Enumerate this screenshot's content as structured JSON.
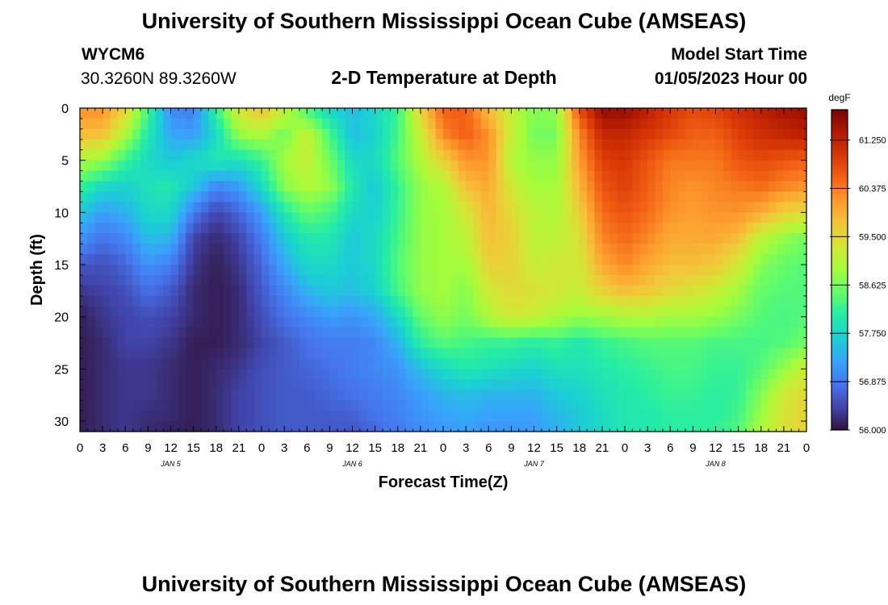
{
  "header": {
    "title": "University of Southern Mississippi Ocean Cube (AMSEAS)",
    "station": "WYCM6",
    "coords": "30.3260N  89.3260W",
    "plot_title": "2-D Temperature at Depth",
    "model_label": "Model Start Time",
    "model_time": "01/05/2023 Hour 00"
  },
  "footer": {
    "title": "University of Southern Mississippi Ocean Cube (AMSEAS)"
  },
  "chart_data": {
    "type": "heatmap",
    "title": "2-D Temperature at Depth",
    "xlabel": "Forecast Time(Z)",
    "ylabel": "Depth (ft)",
    "xlim": [
      0,
      96
    ],
    "ylim": [
      0,
      31
    ],
    "x_tick_labels": [
      "0",
      "3",
      "6",
      "9",
      "12",
      "15",
      "18",
      "21",
      "0",
      "3",
      "6",
      "9",
      "12",
      "15",
      "18",
      "21",
      "0",
      "3",
      "6",
      "9",
      "12",
      "15",
      "18",
      "21",
      "0",
      "3",
      "6",
      "9",
      "12",
      "15",
      "18",
      "21",
      "0"
    ],
    "date_labels": [
      {
        "label": "JAN 5",
        "hour": 12
      },
      {
        "label": "JAN 6",
        "hour": 36
      },
      {
        "label": "JAN 7",
        "hour": 60
      },
      {
        "label": "JAN 8",
        "hour": 84
      }
    ],
    "y_ticks": [
      0,
      5,
      10,
      15,
      20,
      25,
      30
    ],
    "colorbar": {
      "unit": "degF",
      "min": 56.0,
      "max": 61.8,
      "tick_values": [
        56.0,
        56.875,
        57.75,
        58.625,
        59.5,
        60.375,
        61.25
      ],
      "tick_labels": [
        "56.000",
        "56.875",
        "57.750",
        "58.625",
        "59.500",
        "60.375",
        "61.250"
      ],
      "colors": [
        "#30123b",
        "#4145ab",
        "#4675ed",
        "#39a2fc",
        "#1bcfd4",
        "#24eca6",
        "#61fc6c",
        "#a4fc3b",
        "#d1e834",
        "#f3c63a",
        "#fe9b2d",
        "#f36315",
        "#d93806",
        "#b11901",
        "#7a0403"
      ]
    },
    "depths": [
      0,
      2.5,
      5,
      7.5,
      10,
      12.5,
      15,
      17.5,
      20,
      22.5,
      25,
      27.5,
      30,
      31
    ],
    "hours": [
      0,
      3,
      6,
      9,
      12,
      15,
      18,
      21,
      24,
      27,
      30,
      33,
      36,
      39,
      42,
      45,
      48,
      51,
      54,
      57,
      60,
      63,
      66,
      69,
      72,
      75,
      78,
      81,
      84,
      87,
      90,
      93,
      96
    ],
    "temperature_degF": [
      [
        60.2,
        60.2,
        59.6,
        58.3,
        57.0,
        56.9,
        58.2,
        59.4,
        59.8,
        59.2,
        58.3,
        57.7,
        57.5,
        57.8,
        58.2,
        59.6,
        60.6,
        60.6,
        59.8,
        59.2,
        58.7,
        58.8,
        60.8,
        61.6,
        61.6,
        61.3,
        61.0,
        60.8,
        60.9,
        61.1,
        61.3,
        61.5,
        61.6
      ],
      [
        59.8,
        59.8,
        59.0,
        58.0,
        57.3,
        57.2,
        57.8,
        58.8,
        59.0,
        58.6,
        59.2,
        58.3,
        57.5,
        57.7,
        58.3,
        59.2,
        60.3,
        60.6,
        60.2,
        59.2,
        58.6,
        58.6,
        60.3,
        61.2,
        61.2,
        61.0,
        60.8,
        60.6,
        60.6,
        60.9,
        61.1,
        61.2,
        61.3
      ],
      [
        59.0,
        58.8,
        58.2,
        57.8,
        57.6,
        57.8,
        58.0,
        57.9,
        58.2,
        58.9,
        59.2,
        58.6,
        57.8,
        57.8,
        58.4,
        59.0,
        59.6,
        60.2,
        60.2,
        59.0,
        58.8,
        58.8,
        60.1,
        60.9,
        61.0,
        60.7,
        60.4,
        60.4,
        60.4,
        60.7,
        60.8,
        60.7,
        60.6
      ],
      [
        58.2,
        57.8,
        57.7,
        57.9,
        58.0,
        57.6,
        57.0,
        57.2,
        57.8,
        58.7,
        59.0,
        58.8,
        58.0,
        57.6,
        58.2,
        58.8,
        59.0,
        59.8,
        60.0,
        59.3,
        58.9,
        58.9,
        59.9,
        60.7,
        60.9,
        60.6,
        60.3,
        60.2,
        60.3,
        60.4,
        60.5,
        60.3,
        60.2
      ],
      [
        57.6,
        57.2,
        57.4,
        57.8,
        57.8,
        56.9,
        56.4,
        56.7,
        57.2,
        58.0,
        58.5,
        58.3,
        57.8,
        57.7,
        58.2,
        58.8,
        58.9,
        59.3,
        59.9,
        59.5,
        59.1,
        59.0,
        59.6,
        60.5,
        60.7,
        60.5,
        60.2,
        60.1,
        60.2,
        60.2,
        60.0,
        59.6,
        59.5
      ],
      [
        57.1,
        56.8,
        57.0,
        57.5,
        57.4,
        56.4,
        56.2,
        56.4,
        56.9,
        57.6,
        58.0,
        58.0,
        57.6,
        57.8,
        58.3,
        58.8,
        58.9,
        59.1,
        59.8,
        59.6,
        59.1,
        59.1,
        59.4,
        60.3,
        60.5,
        60.3,
        60.0,
        60.0,
        60.0,
        59.8,
        59.1,
        58.8,
        58.6
      ],
      [
        56.6,
        56.5,
        56.7,
        57.1,
        56.9,
        56.3,
        56.1,
        56.3,
        56.7,
        57.3,
        57.8,
        57.8,
        57.6,
        57.8,
        58.4,
        58.8,
        58.9,
        58.9,
        59.6,
        59.6,
        59.2,
        59.3,
        59.3,
        60.0,
        60.3,
        60.0,
        59.8,
        59.8,
        59.7,
        59.3,
        58.7,
        58.5,
        58.4
      ],
      [
        56.3,
        56.4,
        56.5,
        56.8,
        56.6,
        56.2,
        56.1,
        56.2,
        56.6,
        57.0,
        57.4,
        57.6,
        57.5,
        57.7,
        58.3,
        58.8,
        58.9,
        58.7,
        59.3,
        59.5,
        59.4,
        59.3,
        59.2,
        59.6,
        59.8,
        59.7,
        59.5,
        59.4,
        59.2,
        58.9,
        58.5,
        58.4,
        58.4
      ],
      [
        56.1,
        56.3,
        56.4,
        56.5,
        56.4,
        56.2,
        56.1,
        56.2,
        56.5,
        56.8,
        57.0,
        57.2,
        57.1,
        57.3,
        57.8,
        58.5,
        58.8,
        58.6,
        59.0,
        59.3,
        59.2,
        59.0,
        58.8,
        58.9,
        59.0,
        59.0,
        58.9,
        58.9,
        58.8,
        58.6,
        58.4,
        58.3,
        58.4
      ],
      [
        56.1,
        56.2,
        56.4,
        56.4,
        56.3,
        56.1,
        56.1,
        56.2,
        56.4,
        56.6,
        56.8,
        56.9,
        56.9,
        57.0,
        57.4,
        58.1,
        58.4,
        58.3,
        58.2,
        58.2,
        58.1,
        58.2,
        58.0,
        58.2,
        58.3,
        58.4,
        58.4,
        58.4,
        58.3,
        58.3,
        58.3,
        58.4,
        58.6
      ],
      [
        56.1,
        56.2,
        56.3,
        56.3,
        56.2,
        56.1,
        56.2,
        56.3,
        56.5,
        56.6,
        56.7,
        56.8,
        56.9,
        57.0,
        57.1,
        57.5,
        57.8,
        58.0,
        57.9,
        57.8,
        57.7,
        57.9,
        57.9,
        58.0,
        58.1,
        58.2,
        58.3,
        58.3,
        58.2,
        58.2,
        58.4,
        58.8,
        59.3
      ],
      [
        56.1,
        56.2,
        56.3,
        56.3,
        56.2,
        56.1,
        56.2,
        56.4,
        56.5,
        56.6,
        56.6,
        56.7,
        56.8,
        56.9,
        57.0,
        57.2,
        57.4,
        57.5,
        57.4,
        57.4,
        57.4,
        57.6,
        57.7,
        57.9,
        58.0,
        58.1,
        58.2,
        58.2,
        58.1,
        58.2,
        58.7,
        59.3,
        59.5
      ],
      [
        56.1,
        56.2,
        56.3,
        56.2,
        56.2,
        56.1,
        56.2,
        56.4,
        56.5,
        56.6,
        56.6,
        56.6,
        56.6,
        56.8,
        56.9,
        57.1,
        57.2,
        57.3,
        57.2,
        57.2,
        57.2,
        57.4,
        57.6,
        57.8,
        58.0,
        58.0,
        58.1,
        58.1,
        58.1,
        58.3,
        58.9,
        59.4,
        59.6
      ],
      [
        56.1,
        56.2,
        56.3,
        56.2,
        56.1,
        56.1,
        56.2,
        56.4,
        56.5,
        56.6,
        56.6,
        56.6,
        56.6,
        56.7,
        56.9,
        57.0,
        57.2,
        57.2,
        57.1,
        57.1,
        57.2,
        57.4,
        57.6,
        57.8,
        58.0,
        58.0,
        58.1,
        58.1,
        58.2,
        58.4,
        59.0,
        59.4,
        59.6
      ]
    ]
  }
}
